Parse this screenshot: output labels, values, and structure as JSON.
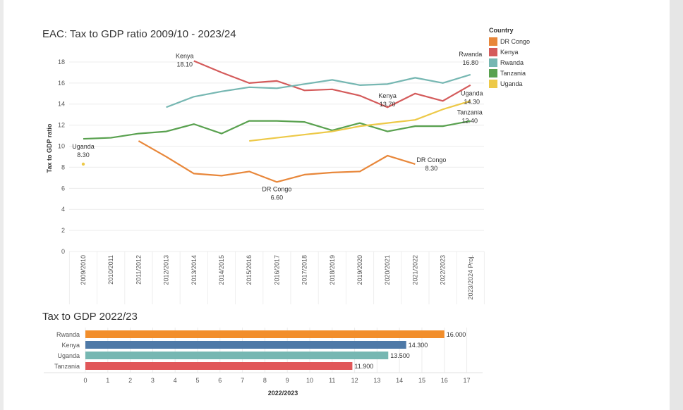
{
  "colors": {
    "DR Congo": "#e8873a",
    "Kenya": "#d45b5b",
    "Rwanda": "#76b7b2",
    "Tanzania": "#59a14f",
    "Uganda": "#edc948",
    "bar_Rwanda": "#f28e2b",
    "bar_Kenya": "#4e79a7",
    "bar_Uganda": "#76b7b2",
    "bar_Tanzania": "#e15759"
  },
  "legend": {
    "title": "Country",
    "items": [
      "DR Congo",
      "Kenya",
      "Rwanda",
      "Tanzania",
      "Uganda"
    ]
  },
  "chart_data": [
    {
      "type": "line",
      "title": "EAC: Tax to GDP ratio 2009/10 - 2023/24",
      "xlabel": "",
      "ylabel": "Tax to GDP ratio",
      "ylim": [
        0,
        18.8
      ],
      "yticks": [
        0,
        2,
        4,
        6,
        8,
        10,
        12,
        14,
        16,
        18
      ],
      "grid": true,
      "legend_placement": "right",
      "categories": [
        "2009/2010",
        "2010/2011",
        "2011/2012",
        "2012/2013",
        "2013/2014",
        "2014/2015",
        "2015/2016",
        "2016/2017",
        "2017/2018",
        "2018/2019",
        "2019/2020",
        "2020/2021",
        "2021/2022",
        "2022/2023",
        "2023/2024 Proj."
      ],
      "series": [
        {
          "name": "DR Congo",
          "values": [
            null,
            null,
            10.5,
            9.0,
            7.4,
            7.2,
            7.6,
            6.6,
            7.3,
            7.5,
            7.6,
            9.1,
            8.3,
            null,
            null
          ]
        },
        {
          "name": "Kenya",
          "values": [
            null,
            null,
            null,
            null,
            18.1,
            17.0,
            16.0,
            16.2,
            15.3,
            15.4,
            14.8,
            13.7,
            15.0,
            14.3,
            15.8
          ]
        },
        {
          "name": "Rwanda",
          "values": [
            null,
            null,
            null,
            13.7,
            14.7,
            15.2,
            15.6,
            15.5,
            15.9,
            16.3,
            15.8,
            15.9,
            16.5,
            16.0,
            16.8
          ]
        },
        {
          "name": "Tanzania",
          "values": [
            10.7,
            10.8,
            11.2,
            11.4,
            12.1,
            11.2,
            12.4,
            12.4,
            12.3,
            11.5,
            12.2,
            11.4,
            11.9,
            11.9,
            12.4
          ]
        },
        {
          "name": "Uganda",
          "values": [
            8.3,
            null,
            null,
            null,
            null,
            null,
            10.5,
            10.8,
            11.1,
            11.4,
            11.9,
            12.2,
            12.5,
            13.5,
            14.3
          ]
        }
      ],
      "annotations": [
        {
          "series": "Kenya",
          "name": "Kenya",
          "value": "18.10",
          "index": 4
        },
        {
          "series": "Uganda",
          "name": "Uganda",
          "value": "8.30",
          "index": 0
        },
        {
          "series": "DR Congo",
          "name": "DR Congo",
          "value": "6.60",
          "index": 7
        },
        {
          "series": "Kenya",
          "name": "Kenya",
          "value": "13.70",
          "index": 11
        },
        {
          "series": "DR Congo",
          "name": "DR Congo",
          "value": "8.30",
          "index": 12
        },
        {
          "series": "Rwanda",
          "name": "Rwanda",
          "value": "16.80",
          "index": 14
        },
        {
          "series": "Uganda",
          "name": "Uganda",
          "value": "14.30",
          "index": 14
        },
        {
          "series": "Tanzania",
          "name": "Tanzania",
          "value": "12.40",
          "index": 14
        }
      ]
    },
    {
      "type": "bar",
      "orientation": "horizontal",
      "title": "Tax to GDP 2022/23",
      "xlabel": "2022/2023",
      "ylabel": "",
      "xlim": [
        0,
        17.8
      ],
      "xticks": [
        0,
        1,
        2,
        3,
        4,
        5,
        6,
        7,
        8,
        9,
        10,
        11,
        12,
        13,
        14,
        15,
        16,
        17
      ],
      "categories": [
        "Rwanda",
        "Kenya",
        "Uganda",
        "Tanzania"
      ],
      "values": [
        16.0,
        14.3,
        13.5,
        11.9
      ],
      "value_labels": [
        "16.000",
        "14.300",
        "13.500",
        "11.900"
      ]
    }
  ]
}
